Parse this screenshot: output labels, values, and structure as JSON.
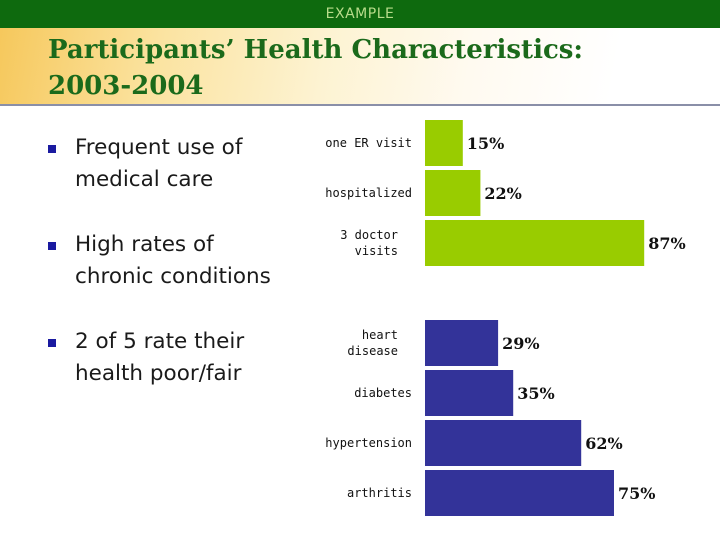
{
  "header": {
    "tag": "EXAMPLE"
  },
  "slide": {
    "title_line1": "Participants’ Health Characteristics:",
    "title_line2": "2003-2004",
    "bullets": [
      {
        "line1": "Frequent use of",
        "line2": "medical care"
      },
      {
        "line1": "High rates of",
        "line2": "chronic conditions"
      },
      {
        "line1": "2 of 5 rate their",
        "line2": "health poor/fair"
      }
    ]
  },
  "colors": {
    "header_bg": "#0e6a0e",
    "title": "#1b6a1b",
    "bullet": "#1a1aa0",
    "utilization_bars": "#99cc00",
    "condition_bars": "#333399"
  },
  "chart_data": [
    {
      "type": "bar",
      "orientation": "horizontal",
      "categories": [
        "one ER visit",
        "hospitalized",
        "3 doctor visits"
      ],
      "category_lines": [
        [
          "one ER visit"
        ],
        [
          "hospitalized"
        ],
        [
          "3 doctor",
          "visits"
        ]
      ],
      "values": [
        15,
        22,
        87
      ],
      "value_labels": [
        "15%",
        "22%",
        "87%"
      ],
      "color": "#99cc00",
      "xlim": [
        0,
        100
      ],
      "title": "",
      "xlabel": "",
      "ylabel": ""
    },
    {
      "type": "bar",
      "orientation": "horizontal",
      "categories": [
        "heart disease",
        "diabetes",
        "hypertension",
        "arthritis"
      ],
      "category_lines": [
        [
          "heart",
          "disease"
        ],
        [
          "diabetes"
        ],
        [
          "hypertension"
        ],
        [
          "arthritis"
        ]
      ],
      "values": [
        29,
        35,
        62,
        75
      ],
      "value_labels": [
        "29%",
        "35%",
        "62%",
        "75%"
      ],
      "color": "#333399",
      "xlim": [
        0,
        100
      ],
      "title": "",
      "xlabel": "",
      "ylabel": ""
    }
  ]
}
